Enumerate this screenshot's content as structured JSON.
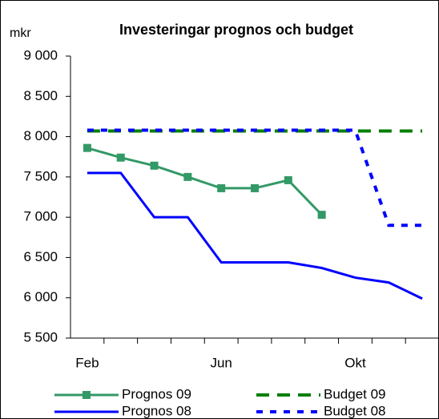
{
  "chart_data": {
    "type": "line",
    "title": "Investeringar prognos och budget",
    "y_label": "mkr",
    "categories": [
      "Feb",
      null,
      null,
      null,
      "Jun",
      null,
      null,
      null,
      "Okt",
      null,
      null
    ],
    "ylim": [
      5500,
      9000
    ],
    "yticks": [
      {
        "value": 5500,
        "label": "5 500"
      },
      {
        "value": 6000,
        "label": "6 000"
      },
      {
        "value": 6500,
        "label": "6 500"
      },
      {
        "value": 7000,
        "label": "7 000"
      },
      {
        "value": 7500,
        "label": "7 500"
      },
      {
        "value": 8000,
        "label": "8 000"
      },
      {
        "value": 8500,
        "label": "8 500"
      },
      {
        "value": 9000,
        "label": "9 000"
      }
    ],
    "grid": false,
    "legend": "bottom",
    "series": [
      {
        "name": "Prognos 09",
        "color": "#339966",
        "style": "solid",
        "marker": "square",
        "values": [
          7860,
          7740,
          7640,
          7500,
          7360,
          7360,
          7460,
          7030,
          null,
          null,
          null
        ]
      },
      {
        "name": "Budget 09",
        "color": "#008000",
        "style": "dashed",
        "values": [
          8070,
          8070,
          8070,
          8070,
          8070,
          8070,
          8070,
          8070,
          8070,
          8070,
          8070
        ]
      },
      {
        "name": "Prognos 08",
        "color": "#0000ff",
        "style": "solid",
        "values": [
          7550,
          7550,
          7000,
          7000,
          6440,
          6440,
          6440,
          6370,
          6250,
          6190,
          5990
        ]
      },
      {
        "name": "Budget 08",
        "color": "#0000ff",
        "style": "dotted",
        "values": [
          8080,
          8080,
          8080,
          8080,
          8080,
          8080,
          8080,
          8080,
          8080,
          6900,
          6900
        ]
      }
    ]
  }
}
